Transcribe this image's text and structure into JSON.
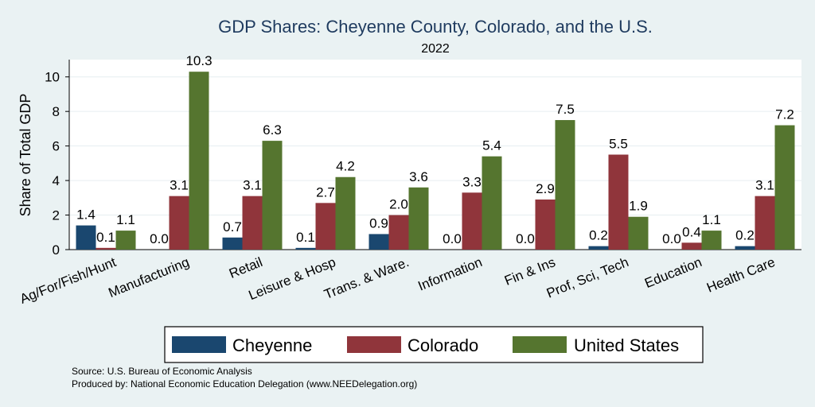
{
  "chart_data": {
    "type": "bar",
    "title": "GDP Shares: Cheyenne County, Colorado, and the U.S.",
    "subtitle": "2022",
    "xlabel": "",
    "ylabel": "Share of Total GDP",
    "ylim": [
      0,
      11
    ],
    "yticks": [
      0,
      2,
      4,
      6,
      8,
      10
    ],
    "categories": [
      "Ag/For/Fish/Hunt",
      "Manufacturing",
      "Retail",
      "Leisure & Hosp",
      "Trans. & Ware.",
      "Information",
      "Fin & Ins",
      "Prof, Sci, Tech",
      "Education",
      "Health Care"
    ],
    "series": [
      {
        "name": "Cheyenne",
        "color": "#1a476f",
        "values": [
          1.4,
          0.0,
          0.7,
          0.1,
          0.9,
          0.0,
          0.0,
          0.2,
          0.0,
          0.2
        ]
      },
      {
        "name": "Colorado",
        "color": "#90353b",
        "values": [
          0.1,
          3.1,
          3.1,
          2.7,
          2.0,
          3.3,
          2.9,
          5.5,
          0.4,
          3.1
        ]
      },
      {
        "name": "United States",
        "color": "#55752f",
        "values": [
          1.1,
          10.3,
          6.3,
          4.2,
          3.6,
          5.4,
          7.5,
          1.9,
          1.1,
          7.2
        ]
      }
    ],
    "grid": true,
    "legend": "bottom"
  },
  "notes": {
    "source": "Source: U.S. Bureau of Economic Analysis",
    "produced": "Produced by: National Economic Education Delegation (www.NEEDelegation.org)"
  }
}
